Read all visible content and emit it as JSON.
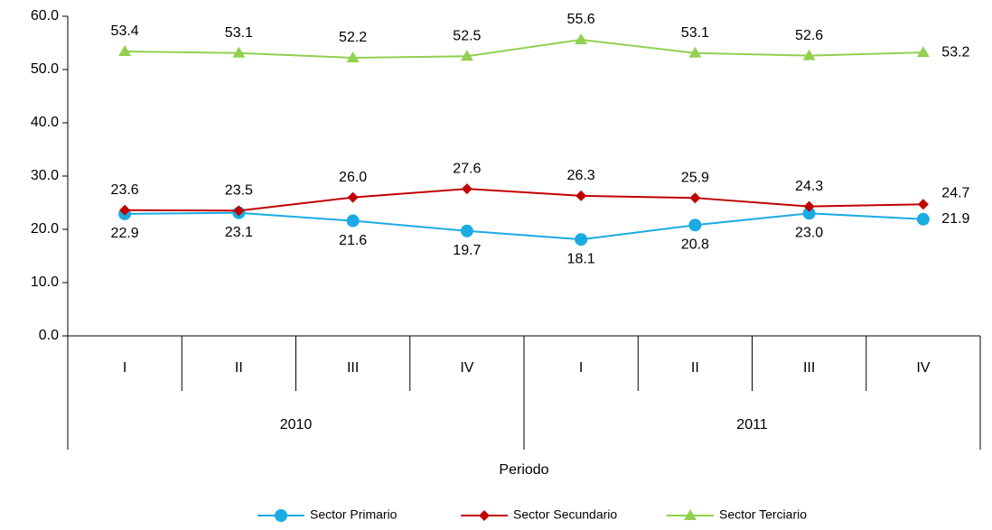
{
  "chart_data": {
    "type": "line",
    "x_label": "Periodo",
    "categories": [
      "I",
      "II",
      "III",
      "IV",
      "I",
      "II",
      "III",
      "IV"
    ],
    "groups": [
      "2010",
      "2011"
    ],
    "ylim": [
      0,
      60
    ],
    "yticks": [
      {
        "value": 0,
        "label": "0.0"
      },
      {
        "value": 10,
        "label": "10.0"
      },
      {
        "value": 20,
        "label": "20.0"
      },
      {
        "value": 30,
        "label": "30.0"
      },
      {
        "value": 40,
        "label": "40.0"
      },
      {
        "value": 50,
        "label": "50.0"
      },
      {
        "value": 60,
        "label": "60.0"
      }
    ],
    "legend": "bottom",
    "series": [
      {
        "name": "Sector Primario",
        "color": "#1aabe3",
        "marker": "circle",
        "values": [
          22.9,
          23.1,
          21.6,
          19.7,
          18.1,
          20.8,
          23.0,
          21.9
        ],
        "value_labels": [
          "22.9",
          "23.1",
          "21.6",
          "19.7",
          "18.1",
          "20.8",
          "23.0",
          "21.9"
        ]
      },
      {
        "name": "Sector Secundario",
        "color": "#c00000",
        "marker": "diamond",
        "values": [
          23.6,
          23.5,
          26.0,
          27.6,
          26.3,
          25.9,
          24.3,
          24.7
        ],
        "value_labels": [
          "23.6",
          "23.5",
          "26.0",
          "27.6",
          "26.3",
          "25.9",
          "24.3",
          "24.7"
        ]
      },
      {
        "name": "Sector Terciario",
        "color": "#92d050",
        "marker": "triangle",
        "values": [
          53.4,
          53.1,
          52.2,
          52.5,
          55.6,
          53.1,
          52.6,
          53.2
        ],
        "value_labels": [
          "53.4",
          "53.1",
          "52.2",
          "52.5",
          "55.6",
          "53.1",
          "52.6",
          "53.2"
        ]
      }
    ]
  }
}
